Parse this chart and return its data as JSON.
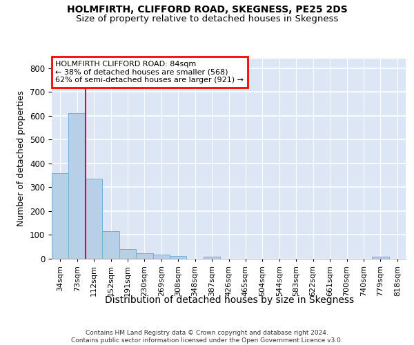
{
  "title1": "HOLMFIRTH, CLIFFORD ROAD, SKEGNESS, PE25 2DS",
  "title2": "Size of property relative to detached houses in Skegness",
  "xlabel": "Distribution of detached houses by size in Skegness",
  "ylabel": "Number of detached properties",
  "bar_labels": [
    "34sqm",
    "73sqm",
    "112sqm",
    "152sqm",
    "191sqm",
    "230sqm",
    "269sqm",
    "308sqm",
    "348sqm",
    "387sqm",
    "426sqm",
    "465sqm",
    "504sqm",
    "544sqm",
    "583sqm",
    "622sqm",
    "661sqm",
    "700sqm",
    "740sqm",
    "779sqm",
    "818sqm"
  ],
  "bar_heights": [
    358,
    612,
    337,
    115,
    40,
    22,
    16,
    13,
    0,
    8,
    0,
    0,
    0,
    0,
    0,
    0,
    0,
    0,
    0,
    8,
    0
  ],
  "bar_color": "#b8cfe8",
  "bar_edge_color": "#7aadd4",
  "property_line_x": 1.5,
  "annotation_line1": "HOLMFIRTH CLIFFORD ROAD: 84sqm",
  "annotation_line2": "← 38% of detached houses are smaller (568)",
  "annotation_line3": "62% of semi-detached houses are larger (921) →",
  "ylim_max": 840,
  "yticks": [
    0,
    100,
    200,
    300,
    400,
    500,
    600,
    700,
    800
  ],
  "bg_color": "#dce6f5",
  "grid_color": "#ffffff",
  "footer": "Contains HM Land Registry data © Crown copyright and database right 2024.\nContains public sector information licensed under the Open Government Licence v3.0."
}
